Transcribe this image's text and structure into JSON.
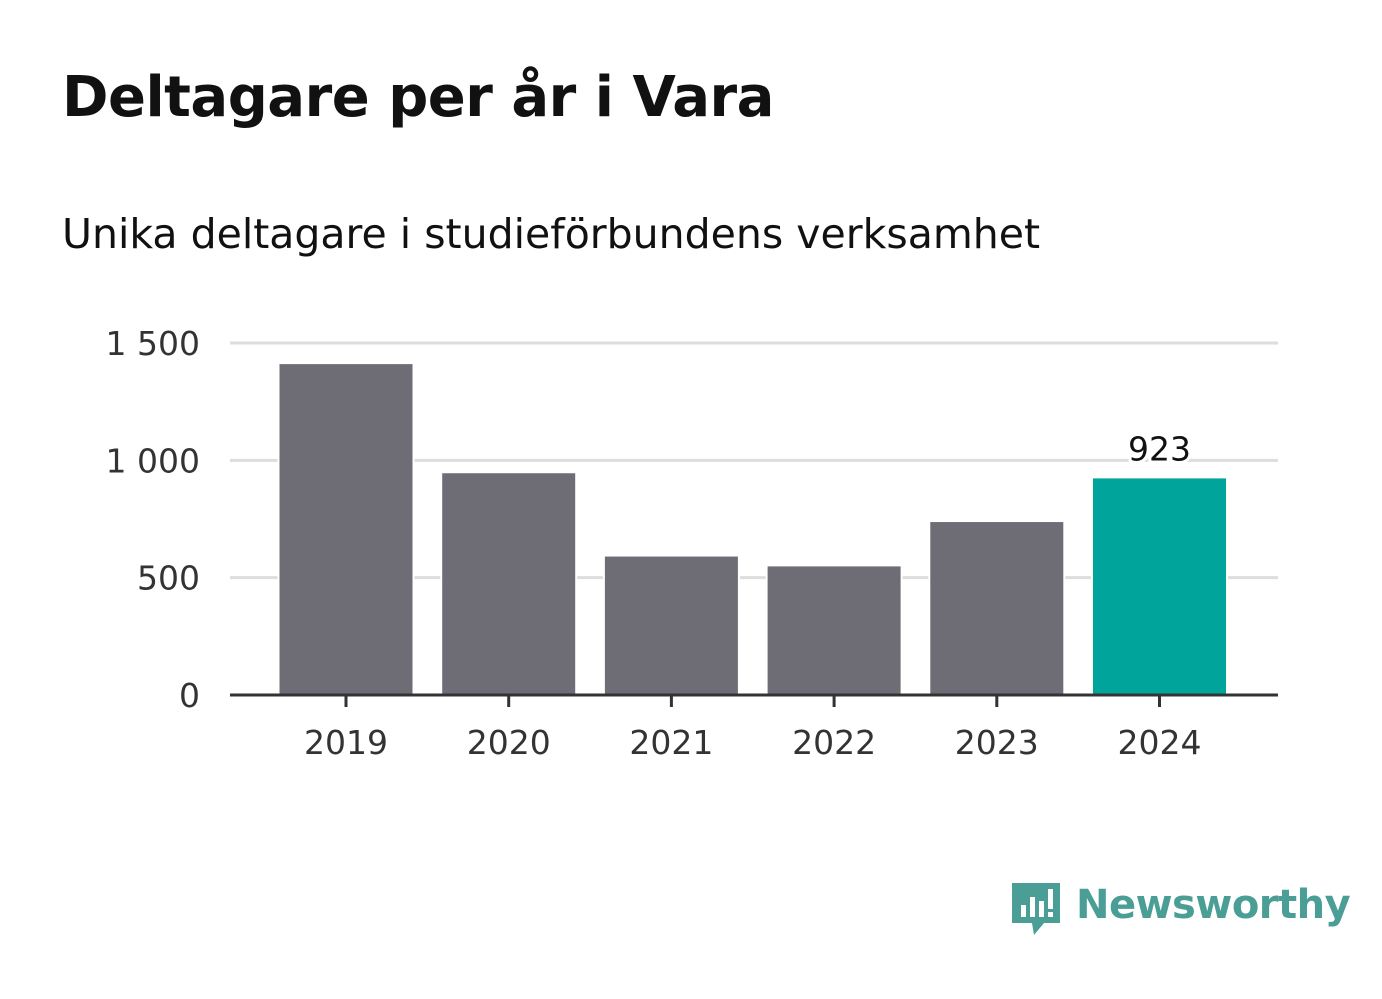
{
  "header": {
    "title": "Deltagare per år i Vara",
    "subtitle": "Unika deltagare i studieförbundens verksamhet"
  },
  "brand": {
    "name": "Newsworthy",
    "icon": "newsworthy-logo-icon",
    "color": "#4a9e95"
  },
  "colors": {
    "bar_default": "#6e6d75",
    "bar_highlight": "#00a49a",
    "grid": "#dddddd",
    "axis": "#333333"
  },
  "chart_data": {
    "type": "bar",
    "title": "Deltagare per år i Vara",
    "subtitle": "Unika deltagare i studieförbundens verksamhet",
    "xlabel": "",
    "ylabel": "",
    "categories": [
      "2019",
      "2020",
      "2021",
      "2022",
      "2023",
      "2024"
    ],
    "values": [
      1410,
      945,
      590,
      548,
      737,
      923
    ],
    "highlight_index": 5,
    "data_labels": [
      {
        "index": 5,
        "text": "923"
      }
    ],
    "ylim": [
      0,
      1500
    ],
    "yticks": [
      0,
      500,
      1000,
      1500
    ],
    "ytick_labels": [
      "0",
      "500",
      "1 000",
      "1 500"
    ],
    "grid": true,
    "legend": "none"
  }
}
